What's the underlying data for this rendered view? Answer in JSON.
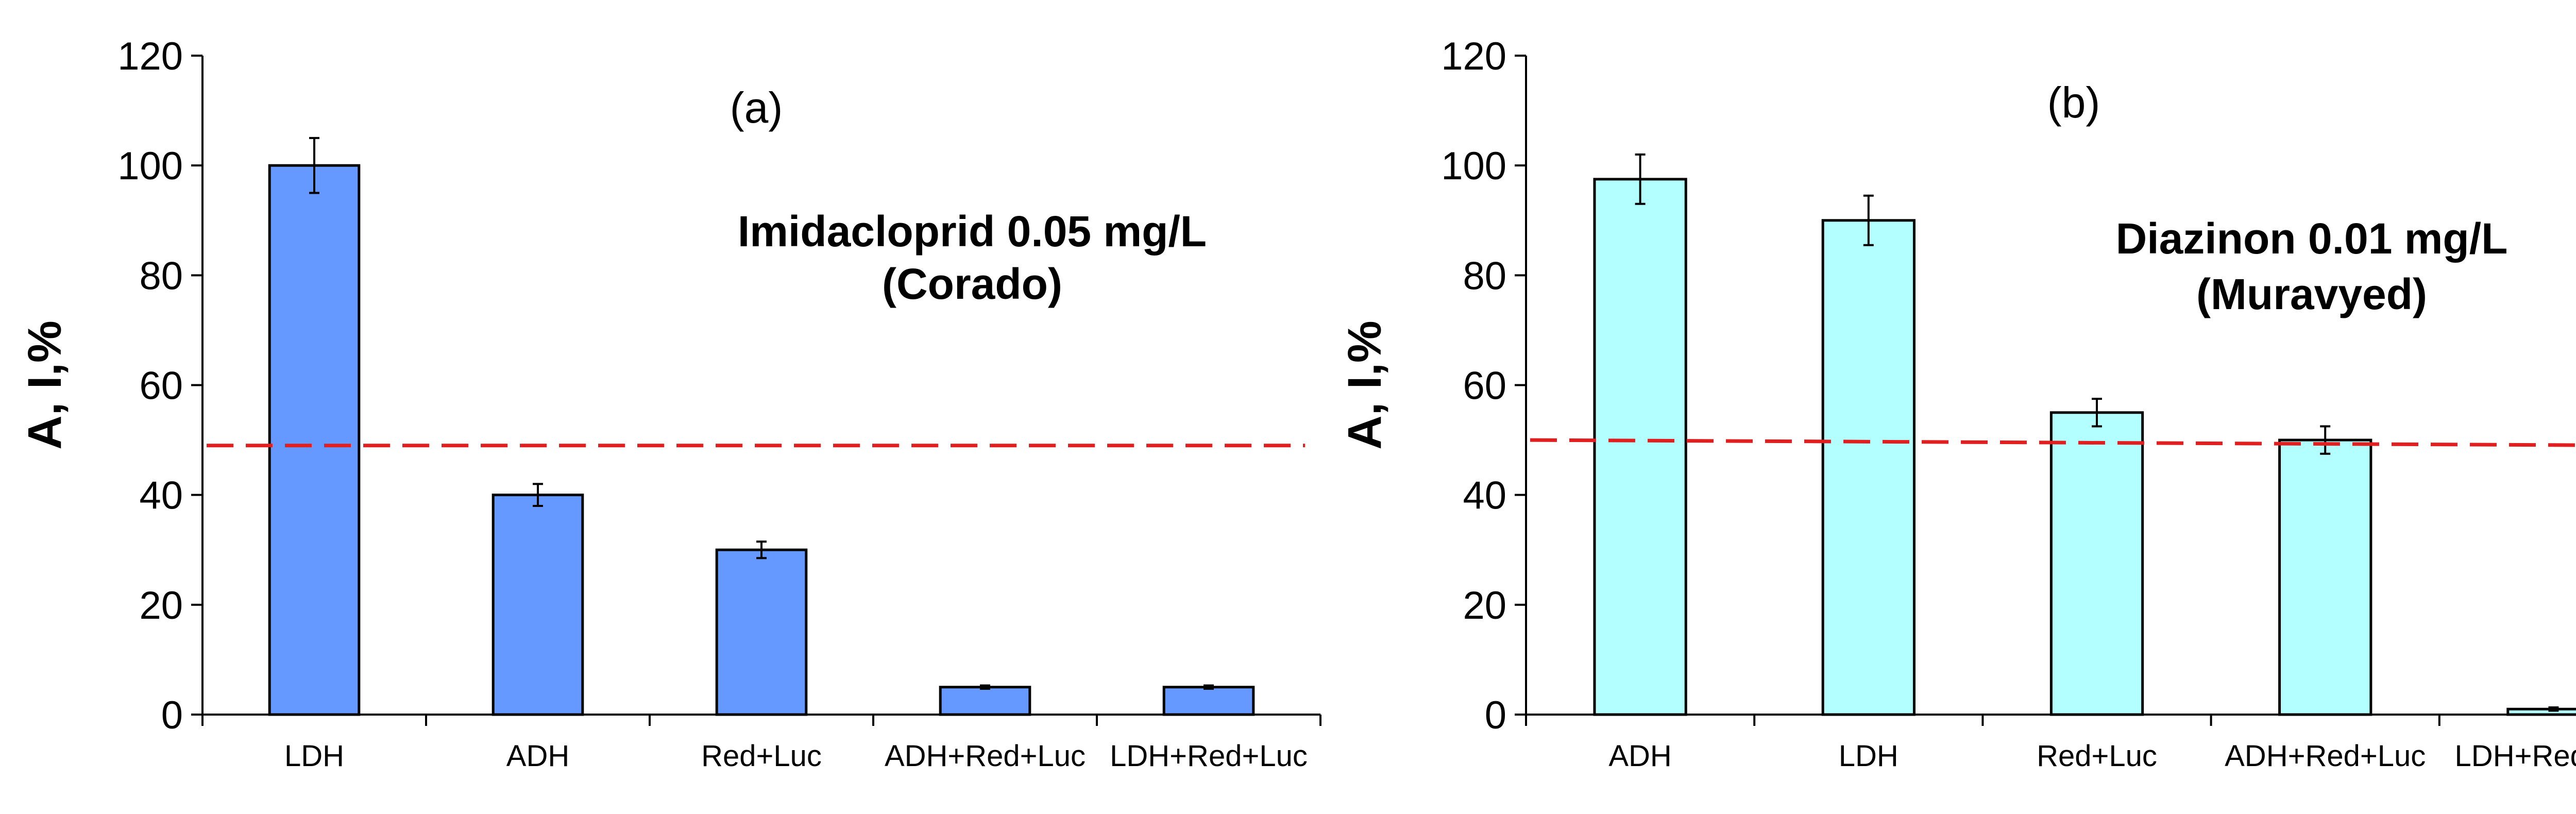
{
  "chart_data": [
    {
      "type": "bar",
      "panel_label": "(a)",
      "annotation": [
        "Imidacloprid 0.05 mg/L",
        "(Corado)"
      ],
      "ylabel": "A, I,%",
      "xlabel": "",
      "ylim": [
        0,
        120
      ],
      "yticks": [
        0,
        20,
        40,
        60,
        80,
        100,
        120
      ],
      "categories": [
        "LDH",
        "ADH",
        "Red+Luc",
        "ADH+Red+Luc",
        "LDH+Red+Luc"
      ],
      "values": [
        100,
        40,
        30,
        5,
        5
      ],
      "errors": [
        5,
        2,
        1.5,
        0.3,
        0.3
      ],
      "bar_color": "#6699FF",
      "threshold_line": [
        49,
        49
      ],
      "threshold_color": "#E02020"
    },
    {
      "type": "bar",
      "panel_label": "(b)",
      "annotation": [
        "Diazinon 0.01 mg/L",
        "(Muravyed)"
      ],
      "ylabel": "A, I,%",
      "xlabel": "",
      "ylim": [
        0,
        120
      ],
      "yticks": [
        0,
        20,
        40,
        60,
        80,
        100,
        120
      ],
      "categories": [
        "ADH",
        "LDH",
        "Red+Luc",
        "ADH+Red+Luc",
        "LDH+Red+Luc"
      ],
      "values": [
        97.5,
        90,
        55,
        50,
        1
      ],
      "errors": [
        4.5,
        4.5,
        2.5,
        2.5,
        0.3
      ],
      "bar_color": "#B3FFFF",
      "threshold_line": [
        50,
        49
      ],
      "threshold_color": "#E02020"
    }
  ]
}
